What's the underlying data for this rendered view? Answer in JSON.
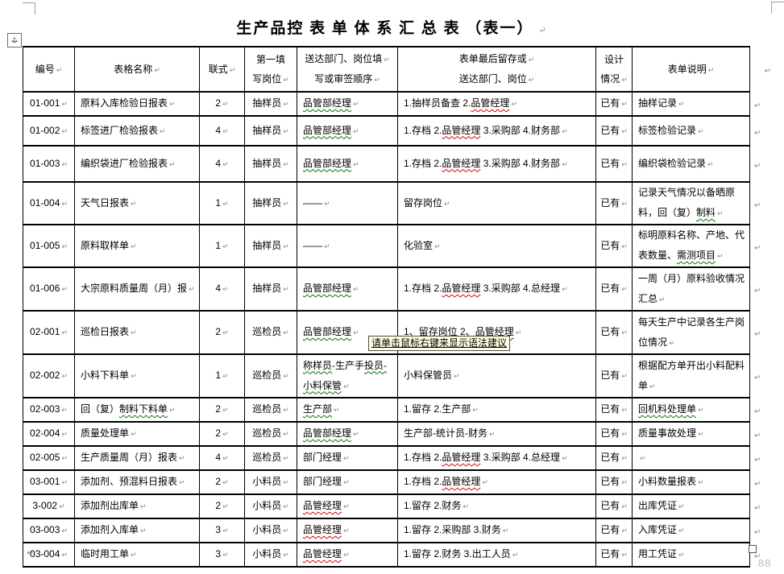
{
  "page": {
    "title": "生产品控 表 单 体 系 汇 总 表 （表一）",
    "page_number": "88"
  },
  "tooltip": {
    "text": "请单击鼠标右键来显示语法建议"
  },
  "colors": {
    "spelling_squiggle_red": "#e00000",
    "grammar_squiggle_green": "#007800",
    "tooltip_background": "#ffffe1",
    "paragraph_mark_gray": "#8a8a8a"
  },
  "table": {
    "headers": [
      {
        "lines": [
          {
            "t": "编号",
            "mark": true
          }
        ]
      },
      {
        "lines": [
          {
            "t": "表格名称",
            "mark": true
          }
        ]
      },
      {
        "lines": [
          {
            "t": "联式",
            "mark": true
          }
        ]
      },
      {
        "lines": [
          {
            "t": "第一填",
            "mark": false
          },
          {
            "t": "写岗位",
            "mark": true
          }
        ]
      },
      {
        "lines": [
          {
            "t": "送达部门、岗位填",
            "mark": true
          },
          {
            "t": "写或审签顺序",
            "mark": true
          }
        ]
      },
      {
        "lines": [
          {
            "t": "表单最后留存或",
            "mark": true
          },
          {
            "t": "送达部门、岗位",
            "mark": true
          }
        ]
      },
      {
        "lines": [
          {
            "t": "设计",
            "mark": false
          },
          {
            "t": "情况",
            "mark": true
          }
        ]
      },
      {
        "lines": [
          {
            "t": "表单说明",
            "mark": true
          }
        ]
      }
    ],
    "rows": [
      {
        "cells": [
          "01-001",
          "原料入库检验日报表",
          "2",
          "抽样员",
          [
            {
              "t": "品管部经理",
              "m": "green"
            }
          ],
          [
            {
              "t": "1.抽样员备查 2.",
              "m": ""
            },
            {
              "t": "品管经理",
              "m": "red"
            }
          ],
          "已有",
          "抽样记录"
        ]
      },
      {
        "cells": [
          "01-002",
          "标签进厂检验报表",
          "4",
          "抽样员",
          [
            {
              "t": "品管部经理",
              "m": "green"
            }
          ],
          [
            {
              "t": "1.存档 2.",
              "m": ""
            },
            {
              "t": "品管经理",
              "m": "red"
            },
            {
              "t": " 3.采购部 4.财务部",
              "m": ""
            }
          ],
          "已有",
          "标签检验记录"
        ]
      },
      {
        "cells": [
          "01-003",
          "编织袋进厂检验报表",
          "4",
          "抽样员",
          [
            {
              "t": "品管部经理",
              "m": "green"
            }
          ],
          [
            {
              "t": "1.存档 2.",
              "m": ""
            },
            {
              "t": "品管经理",
              "m": "red"
            },
            {
              "t": " 3.采购部 4.财务部",
              "m": ""
            }
          ],
          "已有",
          "编织袋检验记录"
        ]
      },
      {
        "cells": [
          "01-004",
          "天气日报表",
          "1",
          "抽样员",
          "——",
          "留存岗位",
          "已有",
          [
            {
              "t": "记录天气情况以备晒原料，回（复）",
              "m": ""
            },
            {
              "t": "制料",
              "m": "green"
            }
          ]
        ]
      },
      {
        "cells": [
          "01-005",
          "原料取样单",
          "1",
          "抽样员",
          "——",
          "化验室",
          "已有",
          [
            {
              "t": "标明原料名称、产地、代表数量、",
              "m": ""
            },
            {
              "t": "需测项目",
              "m": "green"
            }
          ]
        ]
      },
      {
        "cells": [
          "01-006",
          "大宗原料质量周（月）报",
          "4",
          "抽样员",
          [
            {
              "t": "品管部经理",
              "m": "green"
            }
          ],
          [
            {
              "t": "1.存档 2.",
              "m": ""
            },
            {
              "t": "品管经理",
              "m": "red"
            },
            {
              "t": " 3.采购部 4.总经理",
              "m": ""
            }
          ],
          "已有",
          "一周（月）原料验收情况汇总"
        ]
      },
      {
        "cells": [
          "02-001",
          "巡检日报表",
          "2",
          "巡检员",
          [
            {
              "t": "品管部经理",
              "m": "green"
            }
          ],
          [
            {
              "t": "1、留存岗位 2、",
              "m": ""
            },
            {
              "t": "品管经理",
              "m": "red"
            }
          ],
          "已有",
          "每天生产中记录各生产岗位情况"
        ]
      },
      {
        "cells": [
          "02-002",
          "小料下料单",
          "1",
          "巡检员",
          [
            {
              "t": "称样员",
              "m": "green"
            },
            {
              "t": "-生产手",
              "m": ""
            },
            {
              "t": "投员-小料保管",
              "m": "green"
            }
          ],
          "小料保管员",
          "已有",
          "根据配方单开出小料配料单"
        ]
      },
      {
        "cells": [
          "02-003",
          [
            {
              "t": "回（复）",
              "m": ""
            },
            {
              "t": "制料下料单",
              "m": "green"
            }
          ],
          "2",
          "巡检员",
          [
            {
              "t": "生产部",
              "m": "green"
            }
          ],
          "1.留存 2.生产部",
          "已有",
          [
            {
              "t": "回机料处理单",
              "m": "green"
            }
          ]
        ]
      },
      {
        "cells": [
          "02-004",
          "质量处理单",
          "2",
          "巡检员",
          [
            {
              "t": "品管部经理",
              "m": "green"
            }
          ],
          "生产部-统计员-财务",
          "已有",
          "质量事故处理"
        ]
      },
      {
        "cells": [
          "02-005",
          "生产质量周（月）报表",
          "4",
          "巡检员",
          "部门经理",
          [
            {
              "t": "1.存档 2.",
              "m": ""
            },
            {
              "t": "品管经理",
              "m": "red"
            },
            {
              "t": " 3.采购部 4.总经理",
              "m": ""
            }
          ],
          "已有",
          ""
        ]
      },
      {
        "cells": [
          "03-001",
          "添加剂、预混料日报表",
          "2",
          "小料员",
          "部门经理",
          [
            {
              "t": "1.存档 2.",
              "m": ""
            },
            {
              "t": "品管经理",
              "m": "red"
            }
          ],
          "已有",
          "小料数量报表"
        ]
      },
      {
        "cells": [
          "3-002",
          "添加剂出库单",
          "2",
          "小料员",
          [
            {
              "t": "品管经理",
              "m": "red"
            }
          ],
          "1.留存 2.财务",
          "已有",
          "出库凭证"
        ]
      },
      {
        "cells": [
          "03-003",
          "添加剂入库单",
          "3",
          "小料员",
          [
            {
              "t": "品管经理",
              "m": "red"
            }
          ],
          "1.留存 2.采购部 3.财务",
          "已有",
          "入库凭证"
        ]
      },
      {
        "cells": [
          "03-004",
          "临时用工单",
          "3",
          "小料员",
          [
            {
              "t": "品管经理",
              "m": "red"
            }
          ],
          "1.留存 2.财务 3.出工人员",
          "已有",
          "用工凭证"
        ]
      }
    ]
  }
}
